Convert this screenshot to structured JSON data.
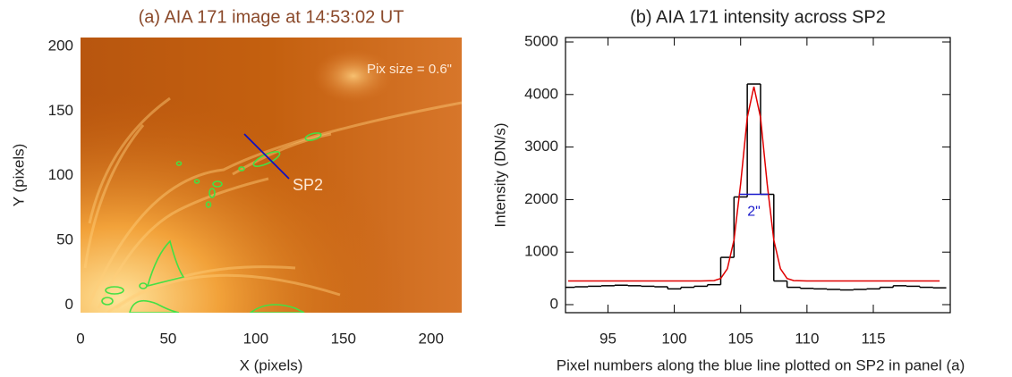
{
  "chart_data": [
    {
      "type": "image",
      "title": "(a) AIA 171 image at 14:53:02 UT",
      "title_color": "#8b4a2b",
      "xlabel": "X (pixels)",
      "ylabel": "Y (pixels)",
      "xlim": [
        0,
        217.5
      ],
      "ylim": [
        -6,
        207
      ],
      "xticks": [
        0,
        50,
        100,
        150,
        200
      ],
      "yticks": [
        0,
        50,
        100,
        150,
        200
      ],
      "annotations": [
        "Pix size = 0.6\"",
        "SP2"
      ]
    },
    {
      "type": "line",
      "title": "(b) AIA 171 intensity across SP2",
      "xlabel": "Pixel numbers along the blue line plotted on SP2 in panel (a)",
      "ylabel": "Intensity (DN/s)",
      "xlim": [
        91.8,
        120.8
      ],
      "ylim": [
        -153,
        5085
      ],
      "xticks": [
        95,
        100,
        105,
        110,
        115
      ],
      "yticks": [
        0,
        1000,
        2000,
        3000,
        4000,
        5000
      ],
      "series": [
        {
          "color": "#000000",
          "step": "mid",
          "x": [
            92,
            93,
            94,
            95,
            96,
            97,
            98,
            99,
            100,
            101,
            102,
            103,
            104,
            105,
            106,
            107,
            108,
            109,
            110,
            111,
            112,
            113,
            114,
            115,
            116,
            117,
            118,
            119,
            120
          ],
          "values": [
            330,
            340,
            350,
            360,
            370,
            360,
            350,
            340,
            300,
            330,
            350,
            380,
            900,
            2050,
            4200,
            2100,
            450,
            330,
            310,
            300,
            290,
            280,
            290,
            300,
            330,
            360,
            350,
            330,
            320
          ]
        },
        {
          "color": "#e00000",
          "x": [
            92,
            100,
            102,
            103,
            103.5,
            104,
            104.5,
            105,
            105.5,
            106,
            106.5,
            107,
            107.5,
            108,
            108.5,
            109,
            110,
            120
          ],
          "values": [
            450,
            450,
            450,
            457,
            498,
            683,
            1230,
            2300,
            3563,
            4150,
            3563,
            2300,
            1230,
            683,
            498,
            457,
            450,
            450
          ]
        }
      ],
      "fwhm_line": {
        "label": "2\"",
        "x": [
          104.9,
          107.1
        ],
        "y": 2100,
        "color": "#1a1acc"
      }
    }
  ]
}
